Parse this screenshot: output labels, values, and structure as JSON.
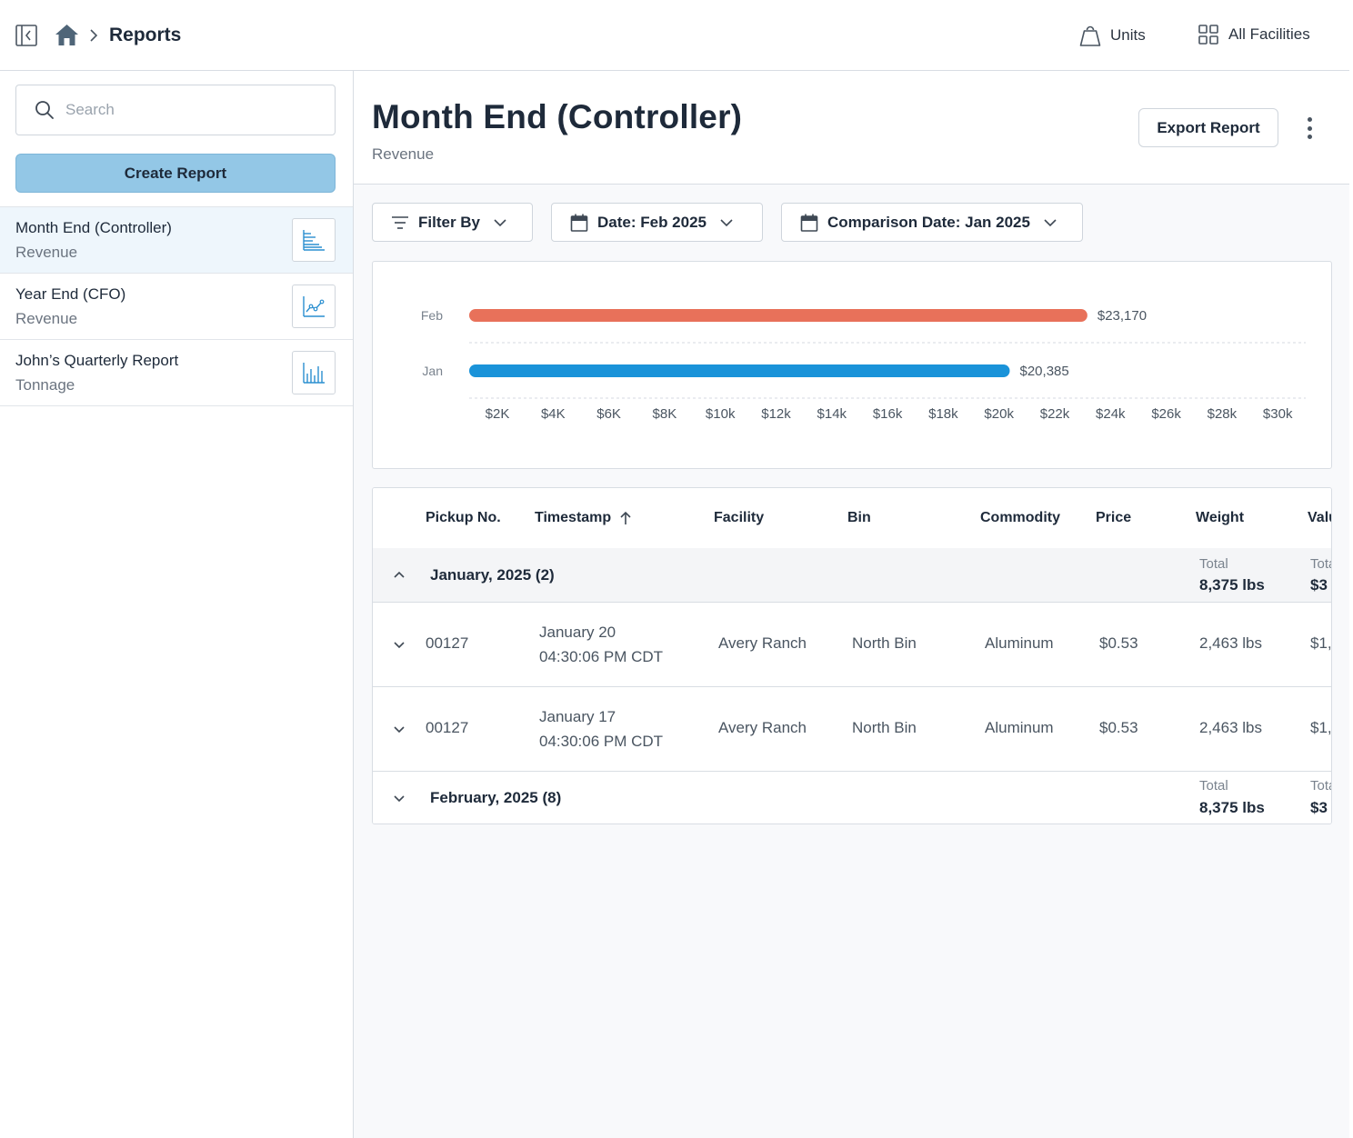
{
  "topbar": {
    "breadcrumb_title": "Reports",
    "units_label": "Units",
    "facilities_label": "All Facilities"
  },
  "sidebar": {
    "search_placeholder": "Search",
    "create_label": "Create Report",
    "reports": [
      {
        "name": "Month End (Controller)",
        "category": "Revenue",
        "icon": "bar-chart-horizontal-icon"
      },
      {
        "name": "Year End (CFO)",
        "category": "Revenue",
        "icon": "line-chart-icon"
      },
      {
        "name": "John’s Quarterly Report",
        "category": "Tonnage",
        "icon": "bar-chart-vertical-icon"
      }
    ]
  },
  "main": {
    "title": "Month End (Controller)",
    "subtitle": "Revenue",
    "export_label": "Export Report",
    "filters": {
      "filter_by": "Filter By",
      "date": "Date: Feb 2025",
      "comparison": "Comparison Date: Jan 2025"
    }
  },
  "colors": {
    "feb_bar": "#e8715a",
    "jan_bar": "#1a93d9",
    "accent_button": "#93c7e6"
  },
  "chart_data": {
    "type": "bar",
    "orientation": "horizontal",
    "categories": [
      "Feb",
      "Jan"
    ],
    "values": [
      23170,
      20385
    ],
    "value_labels": [
      "$23,170",
      "$20,385"
    ],
    "x_ticks": [
      "$2K",
      "$4K",
      "$6K",
      "$8K",
      "$10k",
      "$12k",
      "$14k",
      "$16k",
      "$18k",
      "$20k",
      "$22k",
      "$24k",
      "$26k",
      "$28k",
      "$30k"
    ],
    "x_tick_values": [
      2000,
      4000,
      6000,
      8000,
      10000,
      12000,
      14000,
      16000,
      18000,
      20000,
      22000,
      24000,
      26000,
      28000,
      30000
    ],
    "xlim": [
      0,
      31000
    ],
    "title": "",
    "xlabel": "",
    "ylabel": ""
  },
  "table": {
    "columns": [
      "Pickup No.",
      "Timestamp",
      "Facility",
      "Bin",
      "Commodity",
      "Price",
      "Weight",
      "Value"
    ],
    "groups": [
      {
        "label": "January, 2025 (2)",
        "weight_total_label": "Total",
        "weight_total": "8,375 lbs",
        "value_total_label": "Total",
        "value_total": "$3",
        "rows": [
          {
            "pickup": "00127",
            "date": "January 20",
            "time": "04:30:06 PM CDT",
            "facility": "Avery Ranch",
            "bin": "North Bin",
            "commodity": "Aluminum",
            "price": "$0.53",
            "weight": "2,463 lbs",
            "value": "$1,"
          },
          {
            "pickup": "00127",
            "date": "January 17",
            "time": "04:30:06 PM CDT",
            "facility": "Avery Ranch",
            "bin": "North Bin",
            "commodity": "Aluminum",
            "price": "$0.53",
            "weight": "2,463 lbs",
            "value": "$1,"
          }
        ]
      },
      {
        "label": "February, 2025 (8)",
        "weight_total_label": "Total",
        "weight_total": "8,375 lbs",
        "value_total_label": "Total",
        "value_total": "$3"
      }
    ]
  }
}
